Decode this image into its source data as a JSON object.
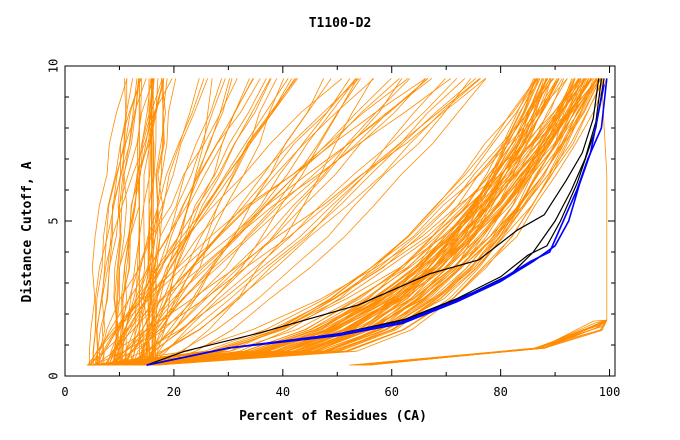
{
  "chart_data": {
    "type": "line",
    "title": "T1100-D2",
    "xlabel": "Percent of Residues (CA)",
    "ylabel": "Distance Cutoff, A",
    "xlim": [
      0,
      101
    ],
    "ylim": [
      0,
      10
    ],
    "x_ticks": [
      0,
      20,
      40,
      60,
      80,
      100
    ],
    "y_ticks": [
      0,
      5,
      10
    ],
    "grid": false,
    "legend": "none",
    "colors": {
      "others": "#ff8c00",
      "highlight_black": "#000000",
      "highlight_blue": "#0000ff"
    },
    "series": [
      {
        "color": "#000000",
        "x": [
          15,
          22,
          36,
          54,
          67,
          76,
          83,
          88,
          92,
          95,
          97,
          98
        ],
        "y": [
          0.35,
          0.8,
          1.4,
          2.3,
          3.3,
          3.75,
          4.7,
          5.2,
          6.3,
          7.2,
          8.3,
          9.6
        ]
      },
      {
        "color": "#000000",
        "x": [
          15,
          30,
          50,
          63,
          75,
          82,
          86,
          90,
          93,
          95.5,
          97.5,
          98.5
        ],
        "y": [
          0.35,
          0.9,
          1.35,
          1.85,
          2.7,
          3.3,
          4.0,
          5.0,
          6.0,
          7.0,
          8.2,
          9.6
        ]
      },
      {
        "color": "#000000",
        "x": [
          15,
          30,
          50,
          62,
          72,
          80,
          85,
          88.5,
          91,
          94,
          97.5,
          99
        ],
        "y": [
          0.35,
          0.9,
          1.35,
          1.8,
          2.5,
          3.2,
          3.9,
          4.2,
          5.0,
          6.2,
          8.0,
          9.6
        ]
      },
      {
        "color": "#0000ff",
        "x": [
          15,
          30,
          50,
          62,
          72,
          80,
          85.5,
          89,
          91.5,
          94,
          96,
          98.5,
          99.5
        ],
        "y": [
          0.35,
          0.9,
          1.35,
          1.75,
          2.45,
          3.1,
          3.7,
          4.0,
          5.0,
          6.0,
          7.0,
          8.0,
          9.6
        ]
      },
      {
        "color": "#0000ff",
        "x": [
          15,
          30,
          50,
          62,
          72,
          80,
          86,
          90,
          92.5,
          94.5,
          96.5,
          99
        ],
        "y": [
          0.35,
          0.9,
          1.3,
          1.7,
          2.4,
          3.05,
          3.7,
          4.2,
          5.0,
          6.2,
          7.2,
          9.4
        ]
      }
    ]
  }
}
